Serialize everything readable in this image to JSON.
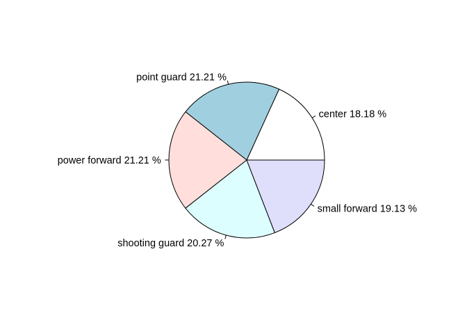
{
  "chart_data": {
    "type": "pie",
    "title": "",
    "start_angle_deg": 0,
    "direction": "counterclockwise",
    "slices": [
      {
        "label": "center 18.18 %",
        "category": "center",
        "value": 18.18,
        "color": "#ffffff"
      },
      {
        "label": "point guard 21.21 %",
        "category": "point guard",
        "value": 21.21,
        "color": "#a0cfe0"
      },
      {
        "label": "power forward 21.21 %",
        "category": "power forward",
        "value": 21.21,
        "color": "#ffdedb"
      },
      {
        "label": "shooting guard 20.27 %",
        "category": "shooting guard",
        "value": 20.27,
        "color": "#dcfefe"
      },
      {
        "label": "small forward 19.13 %",
        "category": "small forward",
        "value": 19.13,
        "color": "#dfdffb"
      }
    ]
  }
}
